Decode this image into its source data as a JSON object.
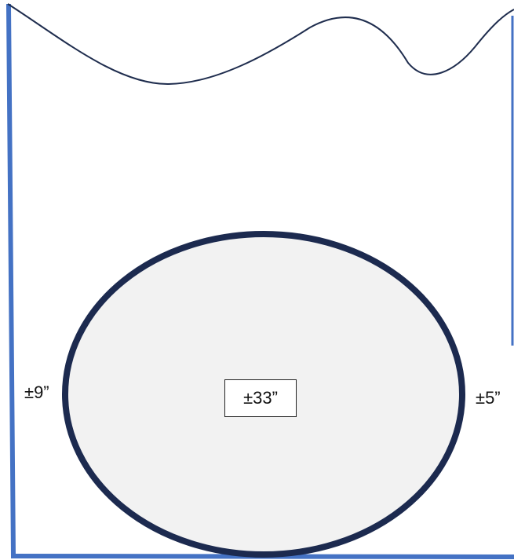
{
  "labels": {
    "left": "±9”",
    "right": "±5”",
    "center": "±33”"
  },
  "colors": {
    "container_walls": "#4472c4",
    "wave_line": "#1f2d4e",
    "ellipse_stroke": "#1c2a4f",
    "ellipse_fill": "#f2f2f2",
    "text": "#111111",
    "background": "#ffffff"
  }
}
